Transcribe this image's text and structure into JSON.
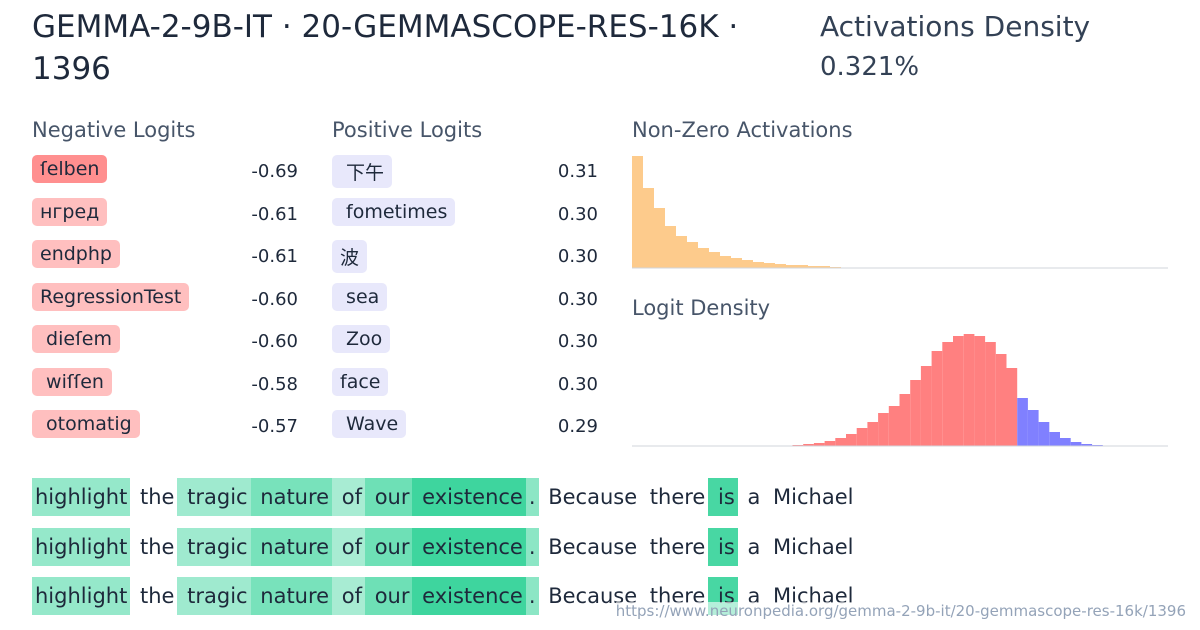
{
  "header": {
    "title": "GEMMA-2-9B-IT · 20-GEMMASCOPE-RES-16K · 1396",
    "density_label": "Activations Density",
    "density_value": "0.321%"
  },
  "negative_logits": {
    "title": "Negative Logits",
    "items": [
      {
        "token": "ſelben",
        "value": "-0.69"
      },
      {
        "token": "нгред",
        "value": "-0.61"
      },
      {
        "token": "endphp",
        "value": "-0.61"
      },
      {
        "token": "RegressionTest",
        "value": "-0.60"
      },
      {
        "token": " dieſem",
        "value": "-0.60"
      },
      {
        "token": " wiſſen",
        "value": "-0.58"
      },
      {
        "token": " otomatig",
        "value": "-0.57"
      }
    ]
  },
  "positive_logits": {
    "title": "Positive Logits",
    "items": [
      {
        "token": " 下午",
        "value": "0.31"
      },
      {
        "token": " fometimes",
        "value": "0.30"
      },
      {
        "token": "波",
        "value": "0.30"
      },
      {
        "token": " sea",
        "value": "0.30"
      },
      {
        "token": " Zoo",
        "value": "0.30"
      },
      {
        "token": "face",
        "value": "0.30"
      },
      {
        "token": " Wave",
        "value": "0.29"
      }
    ]
  },
  "activations_histogram": {
    "type": "bar",
    "title": "Non-Zero Activations",
    "color": "#fdcb8c",
    "values": [
      112,
      80,
      60,
      42,
      32,
      26,
      20,
      16,
      12,
      10,
      8,
      6,
      5,
      4,
      3,
      3,
      2,
      2,
      1
    ]
  },
  "logit_histogram": {
    "type": "bar",
    "title": "Logit Density",
    "series": [
      {
        "name": "negative",
        "color": "#ff8080",
        "values": [
          0,
          0,
          0,
          0,
          0,
          0,
          0,
          0,
          0,
          0,
          0,
          0,
          0,
          0,
          0,
          1,
          2,
          3,
          5,
          8,
          12,
          18,
          24,
          33,
          40,
          52,
          66,
          80,
          95,
          104,
          110,
          112,
          110,
          104,
          92,
          78
        ]
      },
      {
        "name": "positive",
        "color": "#8080ff",
        "values": [
          48,
          36,
          24,
          14,
          8,
          4,
          2,
          1
        ]
      }
    ]
  },
  "snippets": [
    {
      "tokens": [
        "highlight",
        " the",
        " tragic",
        " nature",
        " of",
        " our",
        " existence",
        ".",
        " Because",
        " there",
        " is",
        " a",
        " Michael"
      ],
      "activations": [
        0.55,
        0,
        0.5,
        0.7,
        0.45,
        0.75,
        1,
        0.6,
        0,
        0,
        0.95,
        0,
        0
      ]
    },
    {
      "tokens": [
        "highlight",
        " the",
        " tragic",
        " nature",
        " of",
        " our",
        " existence",
        ".",
        " Because",
        " there",
        " is",
        " a",
        " Michael"
      ],
      "activations": [
        0.55,
        0,
        0.5,
        0.7,
        0.45,
        0.75,
        1,
        0.6,
        0,
        0,
        0.95,
        0,
        0
      ]
    },
    {
      "tokens": [
        "highlight",
        " the",
        " tragic",
        " nature",
        " of",
        " our",
        " existence",
        ".",
        " Because",
        " there",
        " is",
        " a",
        " Michael"
      ],
      "activations": [
        0.55,
        0,
        0.5,
        0.7,
        0.45,
        0.75,
        1,
        0.6,
        0,
        0,
        0.95,
        0,
        0
      ]
    }
  ],
  "footer": {
    "url": "https://www.neuronpedia.org/gemma-2-9b-it/20-gemmascope-res-16k/1396"
  }
}
